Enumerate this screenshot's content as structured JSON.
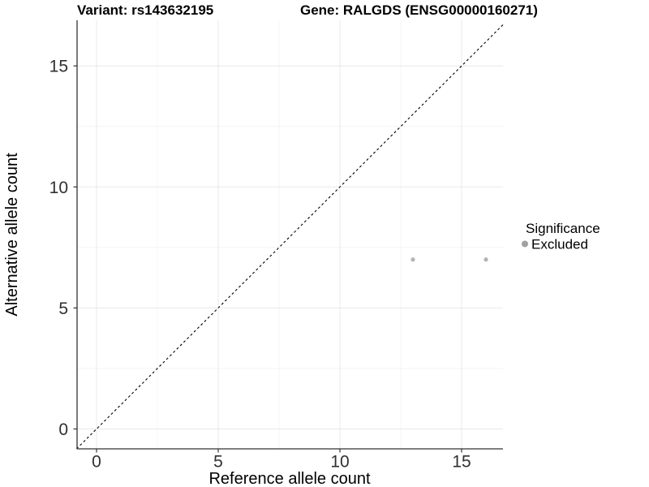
{
  "titles": {
    "variant": "Variant: rs143632195",
    "gene": "Gene: RALGDS (ENSG00000160271)"
  },
  "chart_data": {
    "type": "scatter",
    "xlabel": "Reference allele count",
    "ylabel": "Alternative allele count",
    "x_ticks": [
      0,
      5,
      10,
      15
    ],
    "y_ticks": [
      0,
      5,
      10,
      15
    ],
    "x_minor_ticks": [
      2.5,
      7.5,
      12.5
    ],
    "y_minor_ticks": [
      2.5,
      7.5,
      12.5
    ],
    "xlim": [
      -0.82,
      16.7
    ],
    "ylim": [
      -0.82,
      16.9
    ],
    "grid": true,
    "series": [
      {
        "name": "Excluded",
        "color": "#b4b4b4",
        "points": [
          {
            "x": 13,
            "y": 7
          },
          {
            "x": 16,
            "y": 7
          }
        ]
      }
    ],
    "reference_line": {
      "slope": 1,
      "intercept": 0,
      "style": "dashed",
      "color": "#000000"
    },
    "legend": {
      "title": "Significance",
      "position": "right",
      "entries": [
        {
          "label": "Excluded",
          "color": "#a1a1a1"
        }
      ]
    }
  },
  "colors": {
    "background": "#ffffff",
    "grid_major": "#e8e8e8",
    "grid_minor": "#f3f3f3",
    "axis_line": "#333333",
    "tick_mark": "#333333",
    "tick_text": "#303030",
    "title_text": "#000000",
    "point": "#b4b4b4",
    "legend_key": "#a1a1a1"
  }
}
